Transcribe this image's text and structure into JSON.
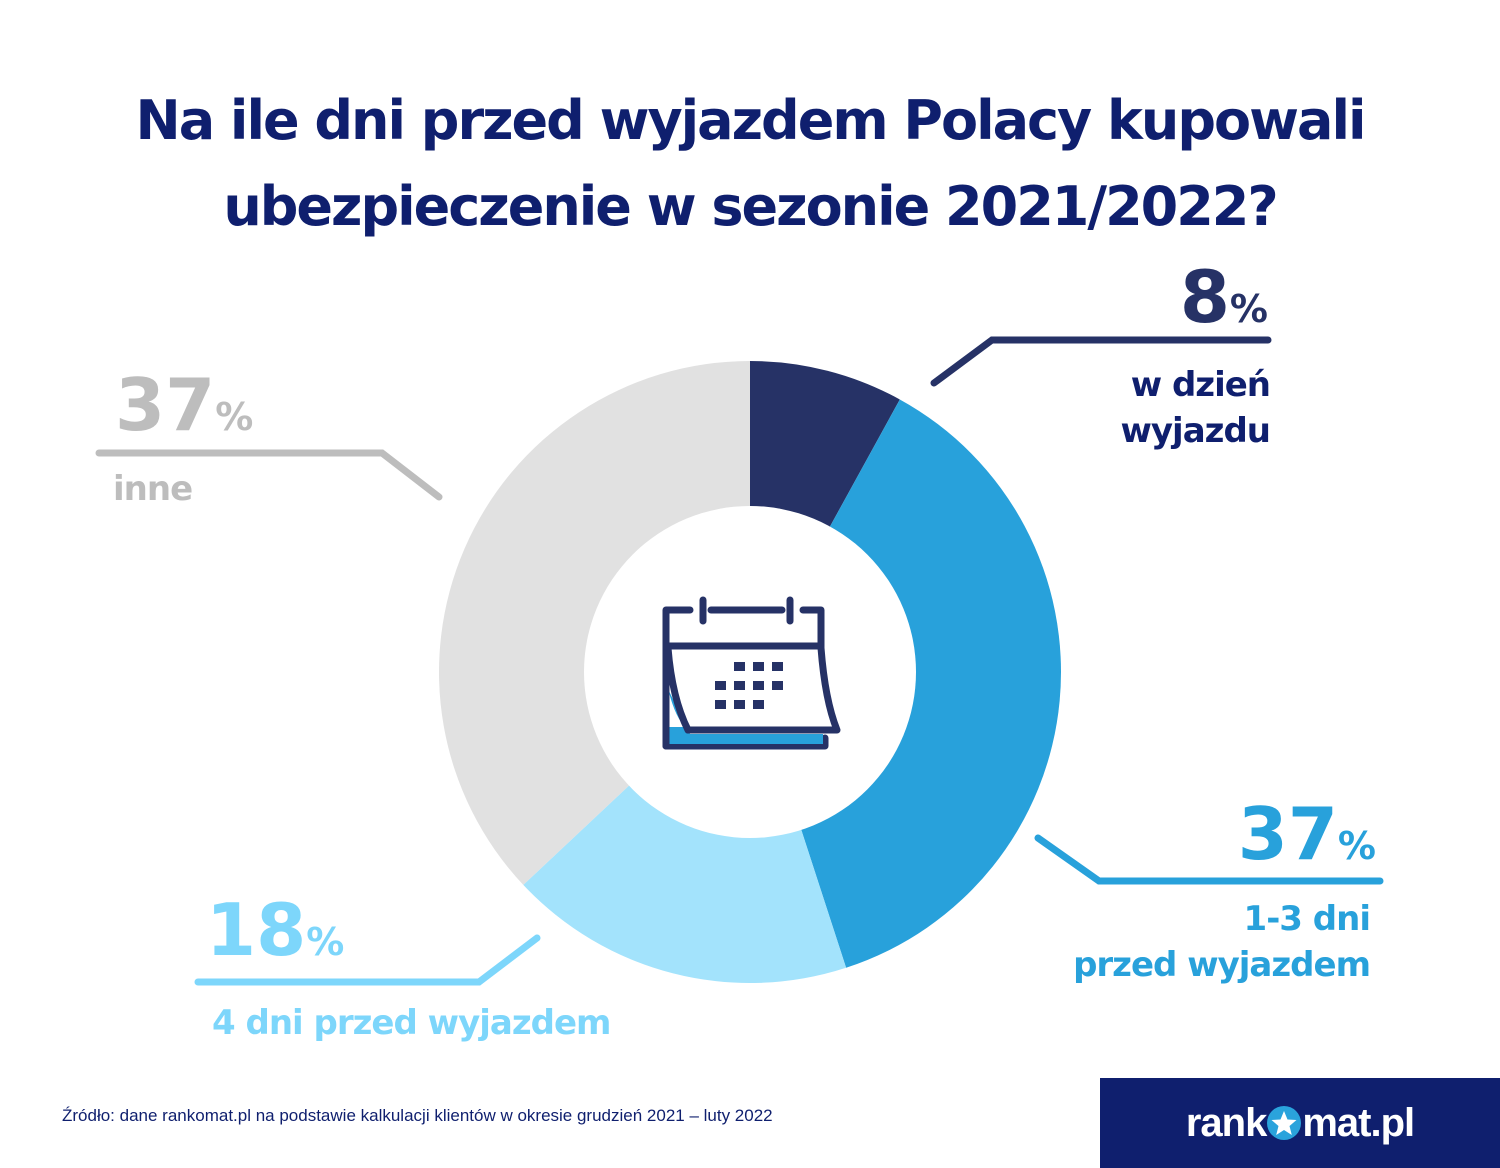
{
  "title": {
    "line1": "Na ile dni przed wyjazdem Polacy kupowali",
    "line2": "ubezpieczenie w sezonie 2021/2022?"
  },
  "chart_data": {
    "type": "pie",
    "variant": "donut",
    "title": "Na ile dni przed wyjazdem Polacy kupowali ubezpieczenie w sezonie 2021/2022?",
    "series": [
      {
        "name": "w dzień wyjazdu",
        "value": 8,
        "value_label": "8",
        "color": "#263266",
        "label_color": "#0f1f6e"
      },
      {
        "name": "1-3 dni przed wyjazdem",
        "value": 37,
        "value_label": "37",
        "color": "#28a1db",
        "label_color": "#28a1db"
      },
      {
        "name": "4 dni przed wyjazdem",
        "value": 18,
        "value_label": "18",
        "color": "#a3e3fc",
        "label_color": "#7dd6fb"
      },
      {
        "name": "inne",
        "value": 37,
        "value_label": "37",
        "color": "#e1e1e1",
        "label_color": "#bdbdbd"
      }
    ],
    "unit": "%",
    "start_angle_deg": 0,
    "direction": "clockwise",
    "center_icon": "calendar-icon"
  },
  "labels": {
    "slice0": {
      "pct": "8",
      "sign": "%",
      "line1": "w dzień",
      "line2": "wyjazdu"
    },
    "slice1": {
      "pct": "37",
      "sign": "%",
      "line1": "1-3 dni",
      "line2": "przed wyjazdem"
    },
    "slice2": {
      "pct": "18",
      "sign": "%",
      "line1": "4 dni przed wyjazdem"
    },
    "slice3": {
      "pct": "37",
      "sign": "%",
      "line1": "inne"
    }
  },
  "footer": {
    "source": "Źródło: dane rankomat.pl na podstawie kalkulacji klientów w okresie grudzień 2021 – luty 2022",
    "logo_left": "rank",
    "logo_right": "mat.pl"
  }
}
